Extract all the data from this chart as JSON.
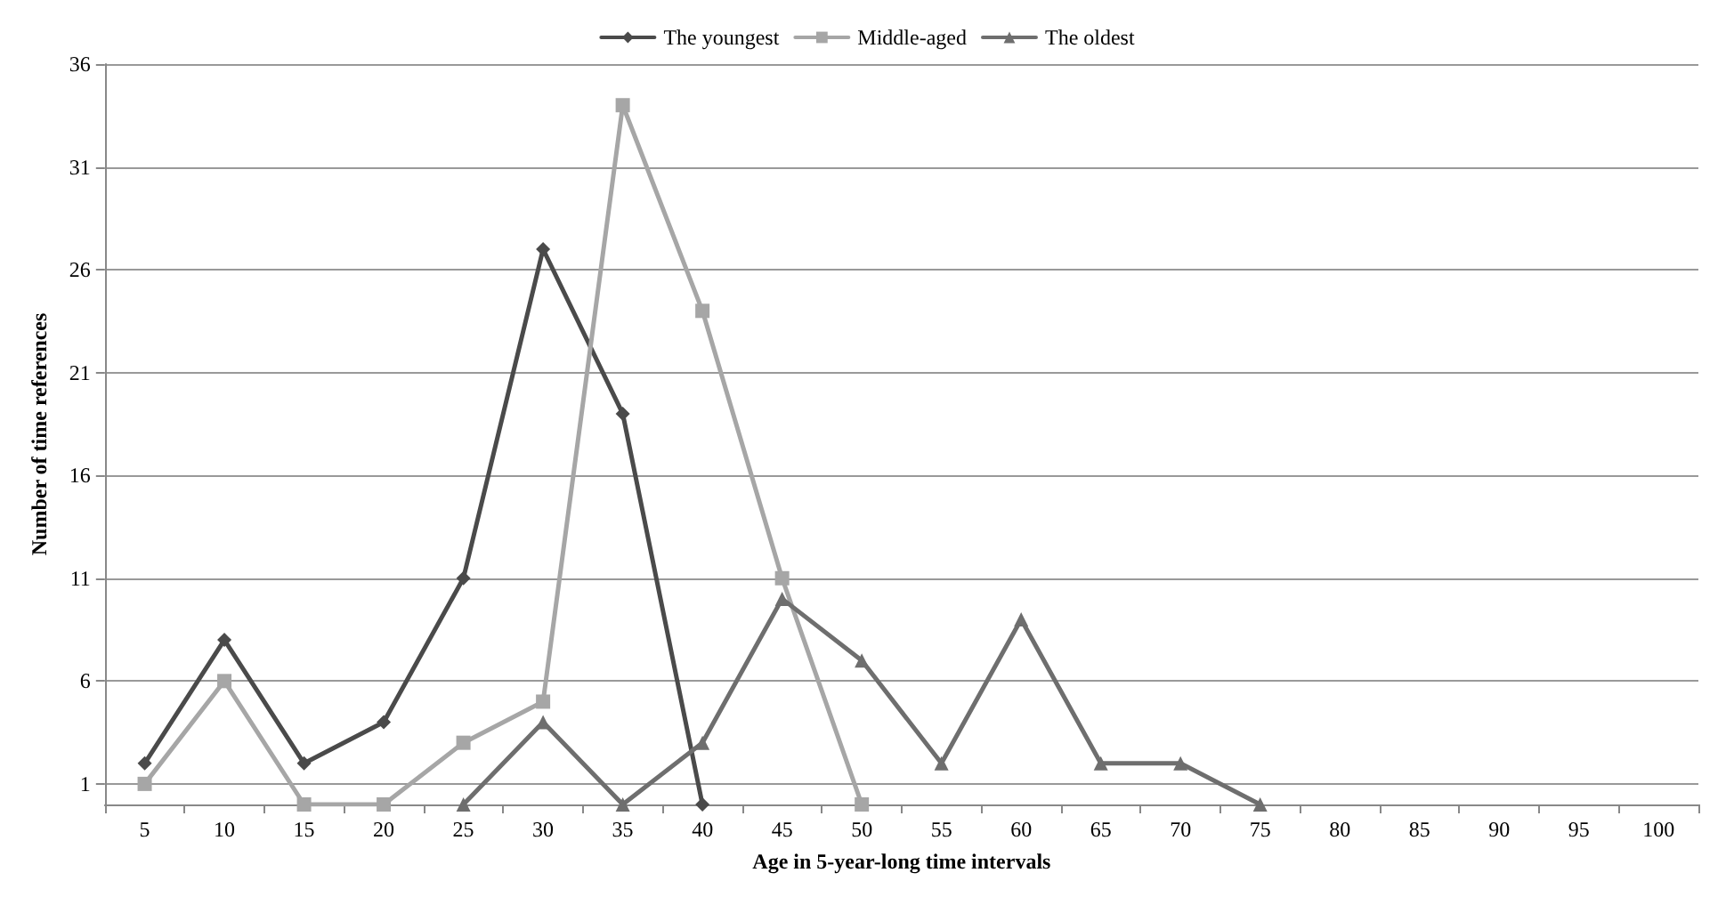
{
  "chart_data": {
    "type": "line",
    "xlabel": "Age in 5-year-long time intervals",
    "ylabel": "Number of time references",
    "categories": [
      "5",
      "10",
      "15",
      "20",
      "25",
      "30",
      "35",
      "40",
      "45",
      "50",
      "55",
      "60",
      "65",
      "70",
      "75",
      "80",
      "85",
      "90",
      "95",
      "100"
    ],
    "series": [
      {
        "name": "The youngest",
        "color": "#4a4a4a",
        "marker": "diamond",
        "values": [
          2,
          8,
          2,
          4,
          11,
          27,
          19,
          0,
          null,
          null,
          null,
          null,
          null,
          null,
          null,
          null,
          null,
          null,
          null,
          null
        ]
      },
      {
        "name": "Middle-aged",
        "color": "#a6a6a6",
        "marker": "square",
        "values": [
          1,
          6,
          0,
          0,
          3,
          5,
          34,
          24,
          11,
          0,
          null,
          null,
          null,
          null,
          null,
          null,
          null,
          null,
          null,
          null
        ]
      },
      {
        "name": "The oldest",
        "color": "#6e6e6e",
        "marker": "triangle",
        "values": [
          null,
          null,
          null,
          null,
          0,
          4,
          0,
          3,
          10,
          7,
          2,
          9,
          2,
          2,
          0,
          null,
          null,
          null,
          null,
          null
        ]
      }
    ],
    "ylim": [
      0,
      36
    ],
    "yticks": [
      1,
      6,
      11,
      16,
      21,
      26,
      31,
      36
    ],
    "grid": "y",
    "legend": "top"
  }
}
